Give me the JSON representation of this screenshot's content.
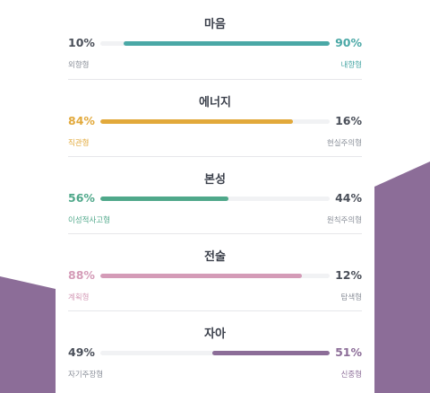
{
  "colors": {
    "purple": "#8c6d98",
    "gray_text": "#4a4f59",
    "muted_text": "#8a8f99"
  },
  "traits": [
    {
      "title": "마음",
      "left_pct": "10%",
      "right_pct": "90%",
      "left_label": "외향형",
      "right_label": "내향형",
      "dominant": "right",
      "value": 0.9,
      "color": "#4aa8a6"
    },
    {
      "title": "에너지",
      "left_pct": "84%",
      "right_pct": "16%",
      "left_label": "직관형",
      "right_label": "현실주의형",
      "dominant": "left",
      "value": 0.84,
      "color": "#e2a93b"
    },
    {
      "title": "본성",
      "left_pct": "56%",
      "right_pct": "44%",
      "left_label": "이성적사고형",
      "right_label": "원칙주의형",
      "dominant": "left",
      "value": 0.56,
      "color": "#4fa88a"
    },
    {
      "title": "전술",
      "left_pct": "88%",
      "right_pct": "12%",
      "left_label": "계획형",
      "right_label": "탐색형",
      "dominant": "left",
      "value": 0.88,
      "color": "#d49bb7"
    },
    {
      "title": "자아",
      "left_pct": "49%",
      "right_pct": "51%",
      "left_label": "자기주장형",
      "right_label": "신중형",
      "dominant": "right",
      "value": 0.51,
      "color": "#8c6d98"
    }
  ]
}
